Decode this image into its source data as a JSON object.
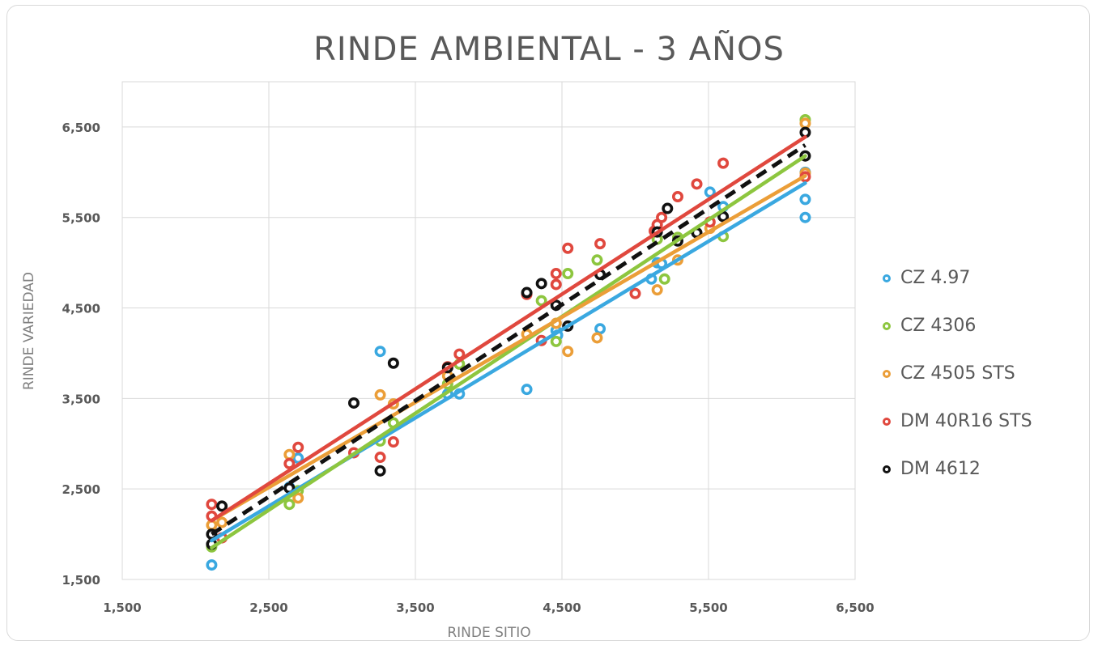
{
  "chart_data": {
    "type": "scatter",
    "title": "RINDE AMBIENTAL  - 3 AÑOS",
    "xlabel": "RINDE SITIO",
    "ylabel": "RINDE VARIEDAD",
    "xlim": [
      1500,
      6500
    ],
    "ylim": [
      1500,
      7000
    ],
    "xticks": [
      1500,
      2500,
      3500,
      4500,
      5500,
      6500
    ],
    "yticks": [
      1500,
      2500,
      3500,
      4500,
      5500,
      6500
    ],
    "xtick_labels": [
      "1,500",
      "2,500",
      "3,500",
      "4,500",
      "5,500",
      "6,500"
    ],
    "ytick_labels": [
      "1,500",
      "2,500",
      "3,500",
      "4,500",
      "5,500",
      "6,500"
    ],
    "grid": true,
    "legend_position": "right",
    "series": [
      {
        "name": "CZ 4.97",
        "color": "#3aa8e0",
        "points": [
          [
            2110,
            1660
          ],
          [
            2640,
            2520
          ],
          [
            2700,
            2840
          ],
          [
            3260,
            4020
          ],
          [
            3720,
            3550
          ],
          [
            3800,
            3550
          ],
          [
            4260,
            3600
          ],
          [
            4460,
            4250
          ],
          [
            4470,
            4200
          ],
          [
            4760,
            4270
          ],
          [
            5110,
            4820
          ],
          [
            5150,
            5000
          ],
          [
            5180,
            4990
          ],
          [
            5510,
            5780
          ],
          [
            5600,
            5620
          ],
          [
            6160,
            5500
          ],
          [
            6160,
            5700
          ],
          [
            6160,
            6000
          ]
        ],
        "trend": [
          [
            2110,
            1930
          ],
          [
            6160,
            5880
          ]
        ]
      },
      {
        "name": "CZ 4306",
        "color": "#8dc63f",
        "points": [
          [
            2110,
            1860
          ],
          [
            2640,
            2330
          ],
          [
            2700,
            2480
          ],
          [
            3260,
            3030
          ],
          [
            3350,
            3230
          ],
          [
            3720,
            3660
          ],
          [
            3800,
            3880
          ],
          [
            4360,
            4580
          ],
          [
            4460,
            4130
          ],
          [
            4540,
            4880
          ],
          [
            4740,
            5030
          ],
          [
            5150,
            5260
          ],
          [
            5200,
            4820
          ],
          [
            5290,
            5280
          ],
          [
            5600,
            5290
          ],
          [
            6160,
            6580
          ]
        ],
        "trend": [
          [
            2110,
            1850
          ],
          [
            6160,
            6180
          ]
        ]
      },
      {
        "name": "CZ 4505 STS",
        "color": "#eb9e38",
        "points": [
          [
            2110,
            2100
          ],
          [
            2180,
            2130
          ],
          [
            2640,
            2880
          ],
          [
            2700,
            2400
          ],
          [
            3260,
            3540
          ],
          [
            3350,
            3440
          ],
          [
            3720,
            3750
          ],
          [
            4260,
            4210
          ],
          [
            4460,
            4330
          ],
          [
            4540,
            4020
          ],
          [
            4740,
            4170
          ],
          [
            5150,
            4700
          ],
          [
            5290,
            5030
          ],
          [
            5510,
            5380
          ],
          [
            6160,
            5990
          ],
          [
            6160,
            6540
          ]
        ],
        "trend": [
          [
            2110,
            2150
          ],
          [
            6160,
            5960
          ]
        ]
      },
      {
        "name": "DM 40R16 STS",
        "color": "#e0483e",
        "points": [
          [
            2110,
            2330
          ],
          [
            2110,
            2200
          ],
          [
            2180,
            1960
          ],
          [
            2640,
            2780
          ],
          [
            2700,
            2960
          ],
          [
            3080,
            2900
          ],
          [
            3260,
            2850
          ],
          [
            3350,
            3020
          ],
          [
            3720,
            3850
          ],
          [
            3800,
            3990
          ],
          [
            4260,
            4650
          ],
          [
            4360,
            4140
          ],
          [
            4460,
            4880
          ],
          [
            4460,
            4760
          ],
          [
            4540,
            5160
          ],
          [
            4760,
            5210
          ],
          [
            5000,
            4660
          ],
          [
            5130,
            5350
          ],
          [
            5150,
            5420
          ],
          [
            5180,
            5500
          ],
          [
            5290,
            5730
          ],
          [
            5420,
            5870
          ],
          [
            5510,
            5450
          ],
          [
            5600,
            6100
          ],
          [
            6160,
            5950
          ]
        ],
        "trend": [
          [
            2110,
            2150
          ],
          [
            6160,
            6390
          ]
        ]
      },
      {
        "name": "DM 4612",
        "color": "#111111",
        "points": [
          [
            2110,
            1890
          ],
          [
            2110,
            2000
          ],
          [
            2180,
            2310
          ],
          [
            2640,
            2510
          ],
          [
            3080,
            3450
          ],
          [
            3260,
            2700
          ],
          [
            3350,
            3890
          ],
          [
            3720,
            3840
          ],
          [
            4260,
            4670
          ],
          [
            4360,
            4770
          ],
          [
            4460,
            4530
          ],
          [
            4540,
            4300
          ],
          [
            4760,
            4870
          ],
          [
            5150,
            5340
          ],
          [
            5220,
            5600
          ],
          [
            5290,
            5240
          ],
          [
            5420,
            5330
          ],
          [
            5600,
            5510
          ],
          [
            6160,
            6180
          ],
          [
            6160,
            6440
          ]
        ],
        "trend": [
          [
            2110,
            2000
          ],
          [
            6160,
            6300
          ]
        ]
      }
    ]
  }
}
